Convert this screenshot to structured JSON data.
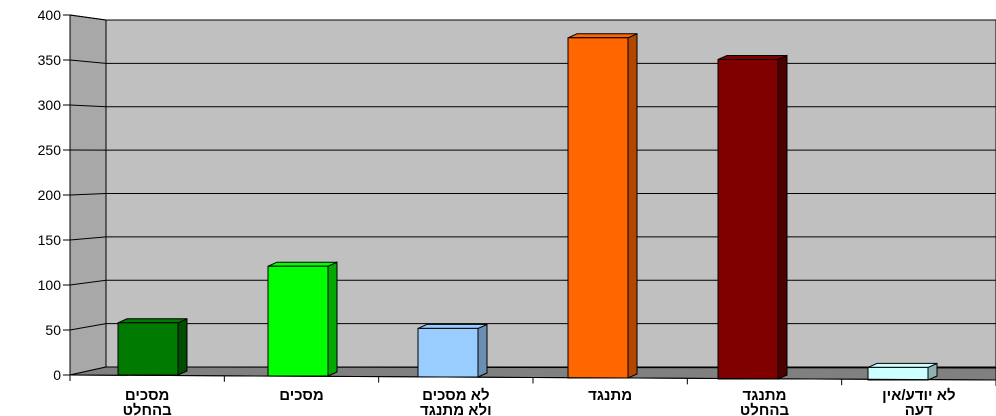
{
  "chart_data": {
    "type": "bar",
    "categories": [
      [
        "מסכים",
        "בהחלט"
      ],
      [
        "מסכים"
      ],
      [
        "לא מסכים",
        "ולא מתנגד"
      ],
      [
        "מתנגד"
      ],
      [
        "מתנגד",
        "בהחלט"
      ],
      [
        "לא יודע/אין",
        "דעה"
      ]
    ],
    "values": [
      58,
      122,
      54,
      378,
      355,
      14
    ],
    "bar_colors": [
      "#007a00",
      "#00ff00",
      "#99ccff",
      "#ff6600",
      "#800000",
      "#ccffff"
    ],
    "bar_side_colors": [
      "#004d00",
      "#00a800",
      "#6b8fb3",
      "#b34700",
      "#4d0000",
      "#8fb3b3"
    ],
    "ylim": [
      0,
      400
    ],
    "yticks": [
      "0",
      "50",
      "100",
      "150",
      "200",
      "250",
      "300",
      "350",
      "400"
    ],
    "title": "",
    "xlabel": "",
    "ylabel": "",
    "grid": true,
    "legend": "none",
    "colors": {
      "plot_wall": "#c0c0c0",
      "side_wall": "#a8a8a8",
      "floor": "#808080",
      "gridline": "#000000"
    }
  }
}
